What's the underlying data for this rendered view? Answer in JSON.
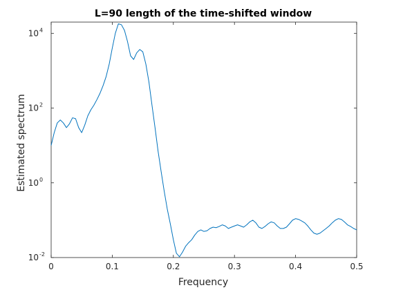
{
  "chart_data": {
    "type": "line",
    "title": "L=90 length of the time-shifted window",
    "xlabel": "Frequency",
    "ylabel": "Estimated spectrum",
    "xlim": [
      0,
      0.5
    ],
    "ylim": [
      0.01,
      20000
    ],
    "yscale": "log",
    "grid": false,
    "x_ticks": [
      {
        "value": 0,
        "label": "0"
      },
      {
        "value": 0.1,
        "label": "0.1"
      },
      {
        "value": 0.2,
        "label": "0.2"
      },
      {
        "value": 0.3,
        "label": "0.3"
      },
      {
        "value": 0.4,
        "label": "0.4"
      },
      {
        "value": 0.5,
        "label": "0.5"
      }
    ],
    "y_ticks": [
      {
        "value": 0.01,
        "base": "10",
        "exp": "-2"
      },
      {
        "value": 1,
        "base": "10",
        "exp": "0"
      },
      {
        "value": 100,
        "base": "10",
        "exp": "2"
      },
      {
        "value": 10000,
        "base": "10",
        "exp": "4"
      }
    ],
    "series": [
      {
        "color": "#0072bd",
        "x": [
          0,
          0.005,
          0.01,
          0.015,
          0.02,
          0.025,
          0.03,
          0.035,
          0.04,
          0.045,
          0.05,
          0.055,
          0.06,
          0.065,
          0.07,
          0.075,
          0.08,
          0.085,
          0.09,
          0.095,
          0.1,
          0.105,
          0.11,
          0.115,
          0.12,
          0.125,
          0.13,
          0.135,
          0.14,
          0.145,
          0.15,
          0.155,
          0.16,
          0.165,
          0.17,
          0.175,
          0.18,
          0.185,
          0.19,
          0.195,
          0.2,
          0.205,
          0.21,
          0.215,
          0.22,
          0.225,
          0.23,
          0.235,
          0.24,
          0.245,
          0.25,
          0.255,
          0.26,
          0.265,
          0.27,
          0.275,
          0.28,
          0.285,
          0.29,
          0.295,
          0.3,
          0.305,
          0.31,
          0.315,
          0.32,
          0.325,
          0.33,
          0.335,
          0.34,
          0.345,
          0.35,
          0.355,
          0.36,
          0.365,
          0.37,
          0.375,
          0.38,
          0.385,
          0.39,
          0.395,
          0.4,
          0.405,
          0.41,
          0.415,
          0.42,
          0.425,
          0.43,
          0.435,
          0.44,
          0.445,
          0.45,
          0.455,
          0.46,
          0.465,
          0.47,
          0.475,
          0.48,
          0.485,
          0.49,
          0.495,
          0.5
        ],
        "y": [
          10,
          22,
          40,
          48,
          40,
          30,
          38,
          55,
          52,
          30,
          22,
          35,
          62,
          90,
          120,
          170,
          250,
          400,
          700,
          1500,
          4000,
          10000,
          18000,
          17000,
          12000,
          6000,
          2500,
          2000,
          3000,
          3700,
          3200,
          1500,
          500,
          120,
          30,
          7,
          2,
          0.6,
          0.2,
          0.08,
          0.03,
          0.013,
          0.0105,
          0.014,
          0.02,
          0.025,
          0.03,
          0.04,
          0.05,
          0.055,
          0.05,
          0.052,
          0.06,
          0.065,
          0.063,
          0.068,
          0.075,
          0.07,
          0.06,
          0.065,
          0.07,
          0.075,
          0.07,
          0.065,
          0.075,
          0.09,
          0.1,
          0.085,
          0.065,
          0.06,
          0.068,
          0.08,
          0.09,
          0.085,
          0.07,
          0.06,
          0.06,
          0.065,
          0.08,
          0.1,
          0.11,
          0.105,
          0.095,
          0.085,
          0.07,
          0.055,
          0.045,
          0.042,
          0.045,
          0.052,
          0.06,
          0.07,
          0.085,
          0.1,
          0.11,
          0.105,
          0.09,
          0.075,
          0.068,
          0.06,
          0.055
        ]
      }
    ]
  }
}
